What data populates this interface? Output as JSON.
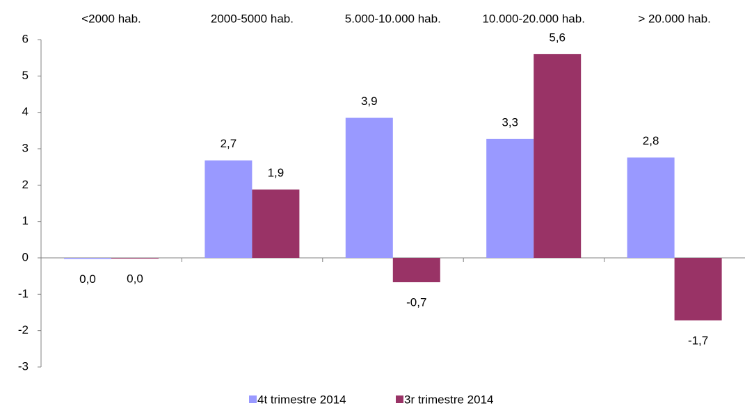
{
  "chart_data": {
    "type": "bar",
    "categories": [
      "<2000 hab.",
      "2000-5000 hab.",
      "5.000-10.000 hab.",
      "10.000-20.000 hab.",
      "> 20.000 hab."
    ],
    "series": [
      {
        "name": "4t trimestre 2014",
        "color": "#9999ff",
        "values": [
          -0.03,
          2.68,
          3.85,
          3.27,
          2.76
        ],
        "value_labels": [
          "0,0",
          "2,7",
          "3,9",
          "3,3",
          "2,8"
        ]
      },
      {
        "name": "3r trimestre 2014",
        "color": "#993366",
        "values": [
          -0.02,
          1.88,
          -0.67,
          5.6,
          -1.72
        ],
        "value_labels": [
          "0,0",
          "1,9",
          "-0,7",
          "5,6",
          "-1,7"
        ]
      }
    ],
    "ylim": [
      -3,
      6
    ],
    "yticks": [
      -3,
      -2,
      -1,
      0,
      1,
      2,
      3,
      4,
      5,
      6
    ],
    "grid": false
  }
}
